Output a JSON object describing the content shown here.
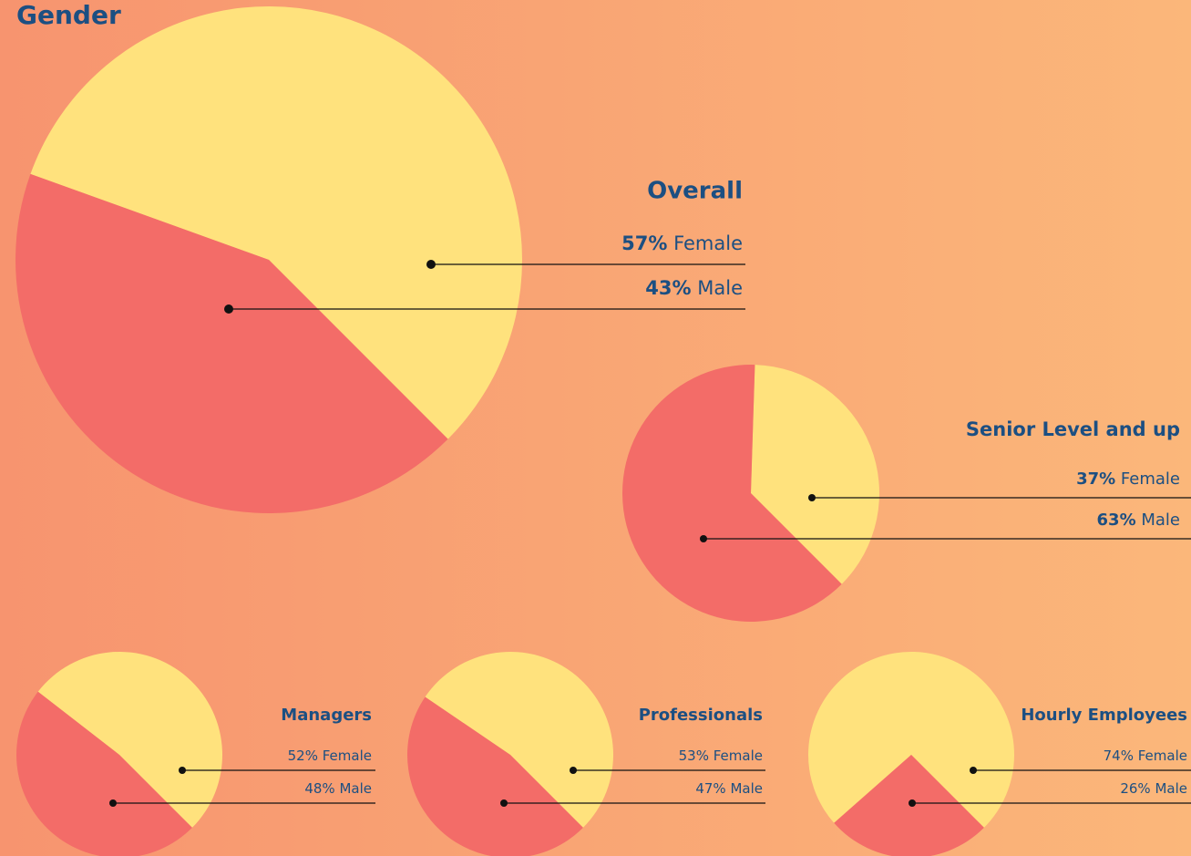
{
  "title": "Gender",
  "chart_data": [
    {
      "type": "pie",
      "title": "Overall",
      "categories": [
        "Female",
        "Male"
      ],
      "values": [
        57,
        43
      ],
      "value_labels": [
        "57%",
        "43%"
      ],
      "colors": [
        "#ffe27d",
        "#f36c68"
      ]
    },
    {
      "type": "pie",
      "title": "Senior Level and up",
      "categories": [
        "Female",
        "Male"
      ],
      "values": [
        37,
        63
      ],
      "value_labels": [
        "37%",
        "63%"
      ],
      "colors": [
        "#ffe27d",
        "#f36c68"
      ]
    },
    {
      "type": "pie",
      "title": "Managers",
      "categories": [
        "Female",
        "Male"
      ],
      "values": [
        52,
        48
      ],
      "value_labels": [
        "52%",
        "48%"
      ],
      "colors": [
        "#ffe27d",
        "#f36c68"
      ]
    },
    {
      "type": "pie",
      "title": "Professionals",
      "categories": [
        "Female",
        "Male"
      ],
      "values": [
        53,
        47
      ],
      "value_labels": [
        "53%",
        "47%"
      ],
      "colors": [
        "#ffe27d",
        "#f36c68"
      ]
    },
    {
      "type": "pie",
      "title": "Hourly Employees",
      "categories": [
        "Female",
        "Male"
      ],
      "values": [
        74,
        26
      ],
      "value_labels": [
        "74%",
        "26%"
      ],
      "colors": [
        "#ffe27d",
        "#f36c68"
      ]
    }
  ]
}
